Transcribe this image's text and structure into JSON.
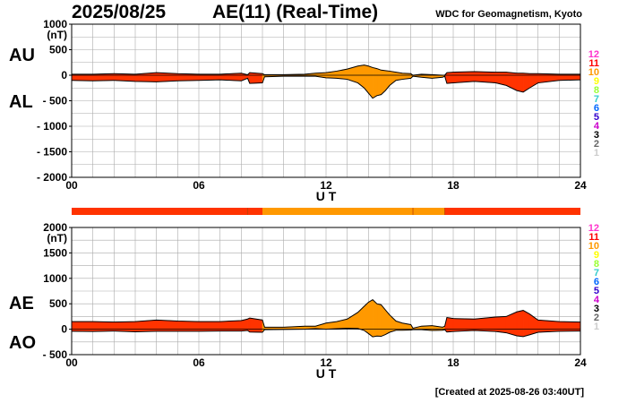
{
  "header": {
    "date": "2025/08/25",
    "title": "AE(11) (Real-Time)",
    "source": "WDC for Geomagnetism, Kyoto",
    "created": "[Created at 2025-08-26 03:40UT]"
  },
  "colors": {
    "red": "#ff3300",
    "orange": "#ff9900",
    "grid": "#aaaaaa",
    "legend": [
      "#ff33cc",
      "#ff0000",
      "#ff9900",
      "#ffff00",
      "#99ff33",
      "#33cccc",
      "#0066ff",
      "#3300cc",
      "#cc00cc",
      "#000000",
      "#666666",
      "#cccccc"
    ]
  },
  "legend": {
    "labels": [
      "12",
      "11",
      "10",
      "9",
      "8",
      "7",
      "6",
      "5",
      "4",
      "3",
      "2",
      "1"
    ]
  },
  "station_bar": {
    "segments": [
      {
        "start": 0,
        "end": 8.3,
        "color": "red"
      },
      {
        "start": 8.3,
        "end": 9.0,
        "color": "red"
      },
      {
        "start": 9.0,
        "end": 16.1,
        "color": "orange"
      },
      {
        "start": 16.1,
        "end": 17.6,
        "color": "orange"
      },
      {
        "start": 17.6,
        "end": 24,
        "color": "red"
      }
    ]
  },
  "chart_data": [
    {
      "type": "area",
      "name": "AU/AL",
      "label_upper": "AU",
      "label_lower": "AL",
      "ylabel": "(nT)",
      "xlabel": "U T",
      "ylim": [
        -2000,
        1000
      ],
      "yticks": [
        "1000",
        "500",
        "0",
        "-500",
        "-1000",
        "-1500",
        "-2000"
      ],
      "xticks": [
        "00",
        "06",
        "12",
        "18",
        "24"
      ],
      "x": [
        0,
        1,
        2,
        3,
        4,
        5,
        6,
        7,
        8,
        8.3,
        8.4,
        9,
        9.1,
        10,
        11,
        11.5,
        12,
        12.5,
        13,
        13.5,
        13.8,
        14,
        14.2,
        14.4,
        14.6,
        14.8,
        15,
        15.3,
        15.6,
        16,
        16.1,
        16.5,
        17,
        17.5,
        17.6,
        17.7,
        18,
        19,
        20,
        20.5,
        21,
        21.3,
        21.6,
        22,
        23,
        24
      ],
      "series": [
        {
          "name": "AU",
          "values": [
            20,
            20,
            30,
            20,
            50,
            30,
            20,
            20,
            40,
            10,
            50,
            30,
            10,
            10,
            20,
            40,
            50,
            80,
            120,
            180,
            200,
            180,
            150,
            130,
            100,
            90,
            80,
            60,
            40,
            30,
            0,
            20,
            10,
            0,
            0,
            50,
            60,
            70,
            60,
            60,
            40,
            40,
            30,
            30,
            20,
            20
          ]
        },
        {
          "name": "AL",
          "values": [
            -100,
            -110,
            -100,
            -120,
            -130,
            -110,
            -100,
            -90,
            -110,
            -60,
            -160,
            -150,
            -30,
            -20,
            -20,
            -20,
            -50,
            -60,
            -80,
            -150,
            -250,
            -350,
            -450,
            -400,
            -380,
            -300,
            -200,
            -100,
            -80,
            -60,
            -20,
            -40,
            -60,
            -40,
            -20,
            -160,
            -150,
            -120,
            -150,
            -200,
            -300,
            -330,
            -250,
            -150,
            -100,
            -90
          ]
        }
      ]
    },
    {
      "type": "area",
      "name": "AE/AO",
      "label_upper": "AE",
      "label_lower": "AO",
      "ylabel": "(nT)",
      "xlabel": "U T",
      "ylim": [
        -500,
        2000
      ],
      "yticks": [
        "2000",
        "1500",
        "1000",
        "500",
        "0",
        "-500"
      ],
      "xticks": [
        "00",
        "06",
        "12",
        "18",
        "24"
      ],
      "x": [
        0,
        1,
        2,
        3,
        4,
        5,
        6,
        7,
        8,
        8.3,
        8.4,
        9,
        9.1,
        10,
        11,
        11.5,
        12,
        12.5,
        13,
        13.5,
        13.8,
        14,
        14.2,
        14.4,
        14.6,
        14.8,
        15,
        15.3,
        15.6,
        16,
        16.1,
        16.5,
        17,
        17.5,
        17.6,
        17.7,
        18,
        19,
        20,
        20.5,
        21,
        21.3,
        21.6,
        22,
        23,
        24
      ],
      "series": [
        {
          "name": "AE",
          "values": [
            150,
            150,
            140,
            150,
            180,
            160,
            150,
            150,
            170,
            200,
            220,
            180,
            40,
            40,
            60,
            60,
            120,
            150,
            200,
            330,
            450,
            530,
            580,
            500,
            480,
            380,
            280,
            160,
            120,
            90,
            20,
            60,
            70,
            40,
            60,
            230,
            210,
            200,
            240,
            250,
            340,
            370,
            300,
            180,
            150,
            140
          ]
        },
        {
          "name": "AO",
          "values": [
            -40,
            -45,
            -35,
            -50,
            -40,
            -40,
            -40,
            -35,
            -35,
            -25,
            -55,
            -60,
            -10,
            -5,
            0,
            10,
            0,
            10,
            20,
            15,
            -25,
            -85,
            -150,
            -135,
            -140,
            -105,
            -60,
            -20,
            -20,
            -15,
            -10,
            -10,
            -25,
            -20,
            -10,
            -55,
            -45,
            -25,
            -45,
            -70,
            -130,
            -145,
            -110,
            -60,
            -40,
            -35
          ]
        }
      ]
    }
  ]
}
